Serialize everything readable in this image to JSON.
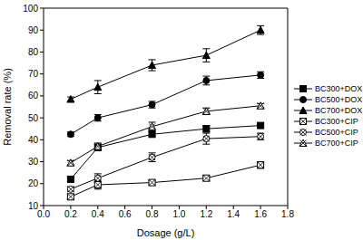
{
  "chart_data": {
    "type": "line",
    "x_label": "Dosage (g/L)",
    "y_label": "Removal rate (%)",
    "x": [
      0.2,
      0.4,
      0.8,
      1.2,
      1.6
    ],
    "xlim": [
      0,
      1.8
    ],
    "xticks": [
      {
        "value": 0,
        "label": "0.0"
      },
      0.2,
      0.4,
      0.6,
      0.8,
      {
        "value": 1,
        "label": "1.0"
      },
      1.2,
      1.4,
      1.6,
      1.8
    ],
    "ylim": [
      10,
      100
    ],
    "yticks": [
      10,
      20,
      30,
      40,
      50,
      60,
      70,
      80,
      90,
      100
    ],
    "grid": false,
    "legend": "right",
    "series": [
      {
        "name": "BC300+DOX",
        "color": "#000000",
        "marker": "square",
        "values": [
          22,
          36.5,
          42.5,
          45,
          46.5
        ],
        "errors": [
          1,
          1.5,
          1,
          1.5,
          1
        ]
      },
      {
        "name": "BC500+DOX",
        "color": "#000000",
        "marker": "circle",
        "values": [
          42.5,
          50,
          56,
          67,
          69.5
        ],
        "errors": [
          1,
          1.5,
          1.5,
          2,
          1.5
        ]
      },
      {
        "name": "BC700+DOX",
        "color": "#000000",
        "marker": "triangle",
        "values": [
          58.5,
          64,
          74,
          78.5,
          90
        ],
        "errors": [
          1,
          3,
          2.5,
          3,
          2
        ]
      },
      {
        "name": "BC300+CIP",
        "color": "#000000",
        "marker": "square-x",
        "values": [
          14,
          19.5,
          20.5,
          22.5,
          28.5
        ],
        "errors": [
          1,
          2,
          1,
          1,
          1.5
        ]
      },
      {
        "name": "BC500+CIP",
        "color": "#000000",
        "marker": "circle-x",
        "values": [
          17.5,
          22.5,
          32,
          40.5,
          41.5
        ],
        "errors": [
          1,
          2,
          2,
          2.5,
          1.5
        ]
      },
      {
        "name": "BC700+CIP",
        "color": "#000000",
        "marker": "triangle-x",
        "values": [
          29.5,
          37,
          46,
          53,
          55.5
        ],
        "errors": [
          1,
          1.5,
          2,
          1.5,
          1
        ]
      }
    ]
  }
}
